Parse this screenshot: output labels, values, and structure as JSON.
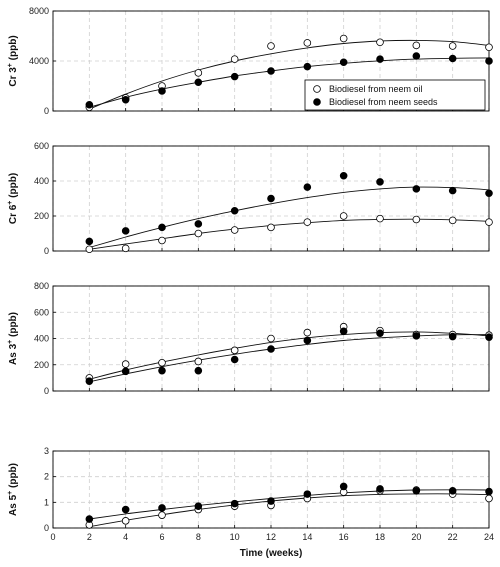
{
  "chart_data": [
    {
      "type": "scatter",
      "ylabel_main": "Cr 3",
      "ylabel_sup": "+",
      "ylabel_unit": " (ppb)",
      "ylim": [
        0,
        8000
      ],
      "yticks": [
        0,
        4000,
        8000
      ],
      "xlim": [
        0,
        24
      ],
      "grid": true,
      "legend": "top-right",
      "series": [
        {
          "name": "Biodiesel from neem oil",
          "marker": "open-circle",
          "x": [
            2,
            4,
            6,
            8,
            10,
            12,
            14,
            16,
            18,
            20,
            22,
            24
          ],
          "y": [
            300,
            1050,
            2000,
            3050,
            4150,
            5200,
            5450,
            5800,
            5500,
            5250,
            5200,
            5100
          ],
          "fit": [
            [
              2,
              150
            ],
            [
              4,
              1350
            ],
            [
              6,
              2400
            ],
            [
              8,
              3280
            ],
            [
              10,
              4000
            ],
            [
              12,
              4580
            ],
            [
              14,
              5050
            ],
            [
              16,
              5400
            ],
            [
              18,
              5600
            ],
            [
              20,
              5650
            ],
            [
              22,
              5550
            ],
            [
              24,
              5250
            ]
          ]
        },
        {
          "name": "Biodiesel from neem seeds",
          "marker": "filled-circle",
          "x": [
            2,
            4,
            6,
            8,
            10,
            12,
            14,
            16,
            18,
            20,
            22,
            24
          ],
          "y": [
            500,
            900,
            1600,
            2300,
            2750,
            3200,
            3550,
            3900,
            4150,
            4400,
            4200,
            4000
          ],
          "fit": [
            [
              2,
              300
            ],
            [
              4,
              1100
            ],
            [
              6,
              1750
            ],
            [
              8,
              2300
            ],
            [
              10,
              2800
            ],
            [
              12,
              3200
            ],
            [
              14,
              3550
            ],
            [
              16,
              3820
            ],
            [
              18,
              4020
            ],
            [
              20,
              4150
            ],
            [
              22,
              4220
            ],
            [
              24,
              4250
            ]
          ]
        }
      ]
    },
    {
      "type": "scatter",
      "ylabel_main": "Cr 6",
      "ylabel_sup": "+",
      "ylabel_unit": " (ppb)",
      "ylim": [
        0,
        600
      ],
      "yticks": [
        0,
        200,
        400,
        600
      ],
      "xlim": [
        0,
        24
      ],
      "grid": true,
      "series": [
        {
          "name": "Biodiesel from neem oil",
          "marker": "open-circle",
          "x": [
            2,
            4,
            6,
            8,
            10,
            12,
            14,
            16,
            18,
            20,
            22,
            24
          ],
          "y": [
            10,
            15,
            60,
            100,
            120,
            135,
            165,
            200,
            185,
            180,
            175,
            165
          ],
          "fit": [
            [
              2,
              10
            ],
            [
              4,
              40
            ],
            [
              6,
              70
            ],
            [
              8,
              100
            ],
            [
              10,
              125
            ],
            [
              12,
              145
            ],
            [
              14,
              162
            ],
            [
              16,
              175
            ],
            [
              18,
              180
            ],
            [
              20,
              182
            ],
            [
              22,
              178
            ],
            [
              24,
              170
            ]
          ]
        },
        {
          "name": "Biodiesel from neem seeds",
          "marker": "filled-circle",
          "x": [
            2,
            4,
            6,
            8,
            10,
            12,
            14,
            16,
            18,
            20,
            22,
            24
          ],
          "y": [
            55,
            115,
            135,
            155,
            230,
            300,
            365,
            430,
            395,
            355,
            345,
            330
          ],
          "fit": [
            [
              2,
              20
            ],
            [
              4,
              80
            ],
            [
              6,
              135
            ],
            [
              8,
              185
            ],
            [
              10,
              230
            ],
            [
              12,
              270
            ],
            [
              14,
              305
            ],
            [
              16,
              335
            ],
            [
              18,
              355
            ],
            [
              20,
              365
            ],
            [
              22,
              362
            ],
            [
              24,
              350
            ]
          ]
        }
      ]
    },
    {
      "type": "scatter",
      "ylabel_main": "As 3",
      "ylabel_sup": "+",
      "ylabel_unit": " (ppb)",
      "ylim": [
        0,
        800
      ],
      "yticks": [
        0,
        200,
        400,
        600,
        800
      ],
      "xlim": [
        0,
        24
      ],
      "grid": true,
      "series": [
        {
          "name": "Biodiesel from neem oil",
          "marker": "open-circle",
          "x": [
            2,
            4,
            6,
            8,
            10,
            12,
            14,
            16,
            18,
            20,
            22,
            24
          ],
          "y": [
            100,
            205,
            215,
            225,
            310,
            400,
            445,
            490,
            460,
            430,
            430,
            425
          ],
          "fit": [
            [
              2,
              90
            ],
            [
              4,
              160
            ],
            [
              6,
              220
            ],
            [
              8,
              275
            ],
            [
              10,
              325
            ],
            [
              12,
              370
            ],
            [
              14,
              405
            ],
            [
              16,
              430
            ],
            [
              18,
              445
            ],
            [
              20,
              450
            ],
            [
              22,
              440
            ],
            [
              24,
              420
            ]
          ]
        },
        {
          "name": "Biodiesel from neem seeds",
          "marker": "filled-circle",
          "x": [
            2,
            4,
            6,
            8,
            10,
            12,
            14,
            16,
            18,
            20,
            22,
            24
          ],
          "y": [
            75,
            150,
            155,
            155,
            240,
            320,
            385,
            455,
            440,
            420,
            415,
            410
          ],
          "fit": [
            [
              2,
              70
            ],
            [
              4,
              130
            ],
            [
              6,
              185
            ],
            [
              8,
              235
            ],
            [
              10,
              280
            ],
            [
              12,
              320
            ],
            [
              14,
              355
            ],
            [
              16,
              385
            ],
            [
              18,
              405
            ],
            [
              20,
              420
            ],
            [
              22,
              428
            ],
            [
              24,
              430
            ]
          ]
        }
      ]
    },
    {
      "type": "scatter",
      "ylabel_main": "As 5",
      "ylabel_sup": "+",
      "ylabel_unit": " (ppb)",
      "ylim": [
        0,
        3
      ],
      "yticks": [
        0,
        1,
        2,
        3
      ],
      "xlim": [
        0,
        24
      ],
      "xticks": [
        0,
        2,
        4,
        6,
        8,
        10,
        12,
        14,
        16,
        18,
        20,
        22,
        24
      ],
      "xlabel": "Time (weeks)",
      "grid": true,
      "series": [
        {
          "name": "Biodiesel from neem oil",
          "marker": "open-circle",
          "x": [
            2,
            4,
            6,
            8,
            10,
            12,
            14,
            16,
            18,
            20,
            22,
            24
          ],
          "y": [
            0.12,
            0.28,
            0.5,
            0.72,
            0.85,
            0.88,
            1.15,
            1.4,
            1.45,
            1.48,
            1.32,
            1.15
          ],
          "fit": [
            [
              2,
              0.05
            ],
            [
              4,
              0.3
            ],
            [
              6,
              0.52
            ],
            [
              8,
              0.72
            ],
            [
              10,
              0.9
            ],
            [
              12,
              1.05
            ],
            [
              14,
              1.17
            ],
            [
              16,
              1.26
            ],
            [
              18,
              1.31
            ],
            [
              20,
              1.33
            ],
            [
              22,
              1.33
            ],
            [
              24,
              1.3
            ]
          ]
        },
        {
          "name": "Biodiesel from neem seeds",
          "marker": "filled-circle",
          "x": [
            2,
            4,
            6,
            8,
            10,
            12,
            14,
            16,
            18,
            20,
            22,
            24
          ],
          "y": [
            0.35,
            0.72,
            0.78,
            0.85,
            0.95,
            1.05,
            1.32,
            1.62,
            1.52,
            1.45,
            1.45,
            1.42
          ],
          "fit": [
            [
              2,
              0.35
            ],
            [
              4,
              0.55
            ],
            [
              6,
              0.72
            ],
            [
              8,
              0.88
            ],
            [
              10,
              1.02
            ],
            [
              12,
              1.15
            ],
            [
              14,
              1.27
            ],
            [
              16,
              1.37
            ],
            [
              18,
              1.44
            ],
            [
              20,
              1.48
            ],
            [
              22,
              1.49
            ],
            [
              24,
              1.48
            ]
          ]
        }
      ]
    }
  ]
}
